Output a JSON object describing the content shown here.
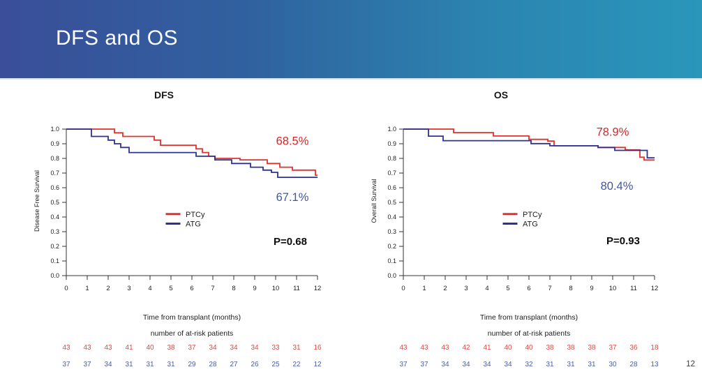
{
  "slide": {
    "title": "DFS and OS",
    "page_number": "12",
    "header_gradient_left": "#3a4e99",
    "header_gradient_right": "#2a96ba"
  },
  "chart_data": [
    {
      "type": "line",
      "subtype": "kaplan-meier-step",
      "title": "DFS",
      "xlabel": "Time from transplant (months)",
      "ylabel": "Disease Free Survival",
      "xlim": [
        0,
        12
      ],
      "ylim": [
        0.0,
        1.0
      ],
      "xticks": [
        0,
        1,
        2,
        3,
        4,
        5,
        6,
        7,
        8,
        9,
        10,
        11,
        12
      ],
      "yticks": [
        0.0,
        0.1,
        0.2,
        0.3,
        0.4,
        0.5,
        0.6,
        0.7,
        0.8,
        0.9,
        1.0
      ],
      "grid": false,
      "legend_position": "center",
      "series": [
        {
          "name": "PTCy",
          "color": "#e0312e",
          "final_value": 0.685,
          "steps": [
            [
              2.3,
              0.975
            ],
            [
              2.7,
              0.95
            ],
            [
              4.2,
              0.925
            ],
            [
              4.5,
              0.89
            ],
            [
              6.2,
              0.865
            ],
            [
              6.5,
              0.84
            ],
            [
              6.8,
              0.815
            ],
            [
              7.1,
              0.8
            ],
            [
              8.3,
              0.79
            ],
            [
              9.6,
              0.765
            ],
            [
              10.2,
              0.74
            ],
            [
              10.8,
              0.72
            ],
            [
              11.9,
              0.685
            ]
          ]
        },
        {
          "name": "ATG",
          "color": "#2d3193",
          "final_value": 0.671,
          "steps": [
            [
              1.2,
              0.95
            ],
            [
              2.0,
              0.925
            ],
            [
              2.3,
              0.9
            ],
            [
              2.6,
              0.875
            ],
            [
              3.0,
              0.84
            ],
            [
              6.2,
              0.815
            ],
            [
              7.1,
              0.79
            ],
            [
              7.9,
              0.765
            ],
            [
              8.8,
              0.74
            ],
            [
              9.4,
              0.72
            ],
            [
              9.8,
              0.705
            ],
            [
              10.1,
              0.671
            ]
          ]
        }
      ],
      "annotations": [
        {
          "text": "68.5%",
          "color": "#d4262b",
          "month": 10.8,
          "value": 0.893,
          "size": 16.5
        },
        {
          "text": "67.1%",
          "color": "#42569f",
          "month": 10.8,
          "value": 0.51,
          "size": 16.5
        },
        {
          "text": "P=0.68",
          "color": "#0d0d0d",
          "month": 10.7,
          "value": 0.21,
          "size": 15
        }
      ],
      "at_risk": {
        "label": "number of at-risk patients",
        "rows": [
          {
            "name": "PTCy",
            "color": "#dd4a44",
            "values": [
              43,
              43,
              43,
              41,
              40,
              38,
              37,
              34,
              34,
              34,
              33,
              31,
              16
            ]
          },
          {
            "name": "ATG",
            "color": "#4a5ca6",
            "values": [
              37,
              37,
              34,
              31,
              31,
              31,
              29,
              28,
              27,
              26,
              25,
              22,
              12
            ]
          }
        ]
      }
    },
    {
      "type": "line",
      "subtype": "kaplan-meier-step",
      "title": "OS",
      "xlabel": "Time from transplant (months)",
      "ylabel": "Overall Survival",
      "xlim": [
        0,
        12
      ],
      "ylim": [
        0.0,
        1.0
      ],
      "xticks": [
        0,
        1,
        2,
        3,
        4,
        5,
        6,
        7,
        8,
        9,
        10,
        11,
        12
      ],
      "yticks": [
        0.0,
        0.1,
        0.2,
        0.3,
        0.4,
        0.5,
        0.6,
        0.7,
        0.8,
        0.9,
        1.0
      ],
      "grid": false,
      "legend_position": "center",
      "series": [
        {
          "name": "PTCy",
          "color": "#e0312e",
          "final_value": 0.789,
          "steps": [
            [
              2.4,
              0.976
            ],
            [
              4.3,
              0.953
            ],
            [
              6.0,
              0.93
            ],
            [
              6.9,
              0.918
            ],
            [
              7.2,
              0.886
            ],
            [
              9.3,
              0.875
            ],
            [
              10.6,
              0.858
            ],
            [
              11.3,
              0.808
            ],
            [
              11.5,
              0.789
            ]
          ]
        },
        {
          "name": "ATG",
          "color": "#2d3193",
          "final_value": 0.804,
          "steps": [
            [
              1.2,
              0.952
            ],
            [
              1.9,
              0.921
            ],
            [
              6.1,
              0.901
            ],
            [
              7.0,
              0.886
            ],
            [
              9.3,
              0.875
            ],
            [
              10.1,
              0.855
            ],
            [
              11.65,
              0.804
            ]
          ]
        }
      ],
      "annotations": [
        {
          "text": "78.9%",
          "color": "#d4262b",
          "month": 10.0,
          "value": 0.955,
          "size": 16.5
        },
        {
          "text": "80.4%",
          "color": "#42569f",
          "month": 10.2,
          "value": 0.585,
          "size": 16.5
        },
        {
          "text": "P=0.93",
          "color": "#0d0d0d",
          "month": 10.5,
          "value": 0.215,
          "size": 15
        }
      ],
      "at_risk": {
        "label": "number of at-risk patients",
        "rows": [
          {
            "name": "PTCy",
            "color": "#dd4a44",
            "values": [
              43,
              43,
              43,
              42,
              41,
              40,
              40,
              38,
              38,
              38,
              37,
              36,
              18
            ]
          },
          {
            "name": "ATG",
            "color": "#4a5ca6",
            "values": [
              37,
              37,
              34,
              34,
              34,
              34,
              32,
              31,
              31,
              31,
              30,
              28,
              13
            ]
          }
        ]
      }
    }
  ]
}
